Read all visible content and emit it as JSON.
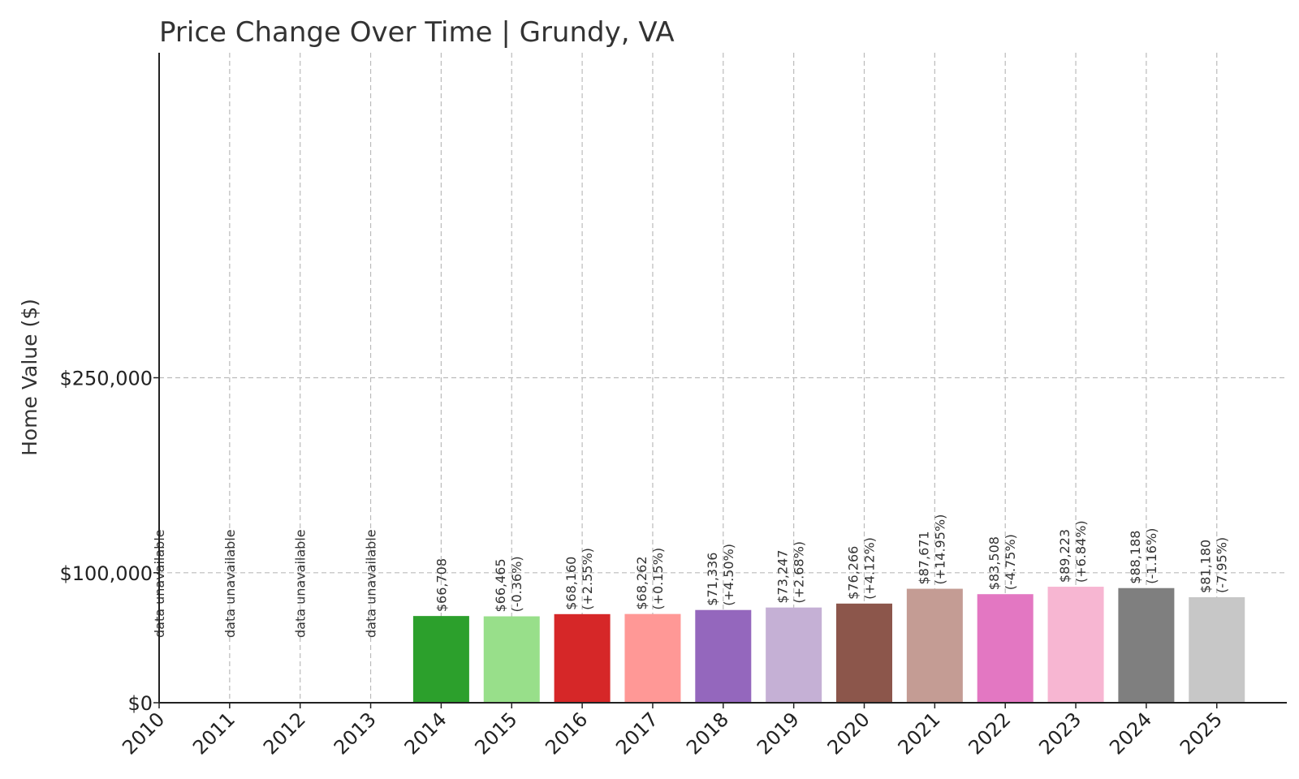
{
  "chart_data": {
    "type": "bar",
    "title": "Price Change Over Time | Grundy, VA",
    "xlabel": "",
    "ylabel": "Home Value ($)",
    "ylim": [
      0,
      500000
    ],
    "yticks": [
      {
        "value": 0,
        "label": "$0"
      },
      {
        "value": 100000,
        "label": "$100,000"
      },
      {
        "value": 250000,
        "label": "$250,000"
      }
    ],
    "grid": true,
    "unavailable_label": "data unavailable",
    "categories": [
      "2010",
      "2011",
      "2012",
      "2013",
      "2014",
      "2015",
      "2016",
      "2017",
      "2018",
      "2019",
      "2020",
      "2021",
      "2022",
      "2023",
      "2024",
      "2025"
    ],
    "values": [
      null,
      null,
      null,
      null,
      66708,
      66465,
      68160,
      68262,
      71336,
      73247,
      76266,
      87671,
      83508,
      89223,
      88188,
      81180
    ],
    "value_labels": [
      "",
      "",
      "",
      "",
      "$66,708",
      "$66,465",
      "$68,160",
      "$68,262",
      "$71,336",
      "$73,247",
      "$76,266",
      "$87,671",
      "$83,508",
      "$89,223",
      "$88,188",
      "$81,180"
    ],
    "change_labels": [
      "",
      "",
      "",
      "",
      "",
      "(-0.36%)",
      "(+2.55%)",
      "(+0.15%)",
      "(+4.50%)",
      "(+2.68%)",
      "(+4.12%)",
      "(+14.95%)",
      "(-4.75%)",
      "(+6.84%)",
      "(-1.16%)",
      "(-7.95%)"
    ],
    "colors": [
      "#1f77b4",
      "#aec7e8",
      "#ff7f0e",
      "#ffbb78",
      "#2ca02c",
      "#98df8a",
      "#d62728",
      "#ff9896",
      "#9467bd",
      "#c5b0d5",
      "#8c564b",
      "#c49c94",
      "#e377c2",
      "#f7b6d2",
      "#7f7f7f",
      "#c7c7c7"
    ]
  }
}
